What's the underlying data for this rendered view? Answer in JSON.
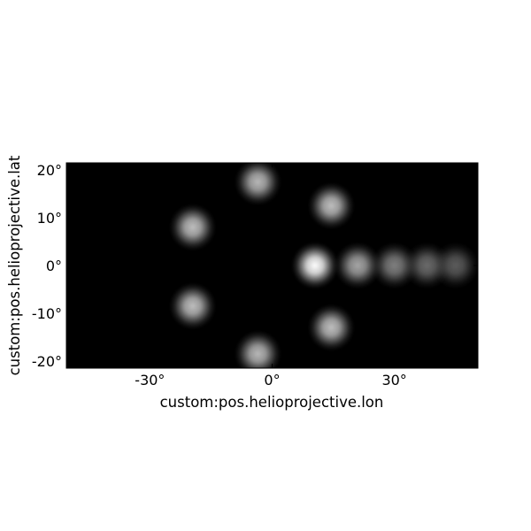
{
  "chart_data": {
    "type": "heatmap",
    "title": "",
    "xlabel": "custom:pos.helioprojective.lon",
    "ylabel": "custom:pos.helioprojective.lat",
    "xlim": [
      -50.5,
      50.5
    ],
    "ylim": [
      -21.5,
      21.5
    ],
    "xticks": [
      {
        "value": -30,
        "label": "-30°"
      },
      {
        "value": 0,
        "label": "0°"
      },
      {
        "value": 30,
        "label": "30°"
      }
    ],
    "yticks": [
      {
        "value": 20,
        "label": "20°"
      },
      {
        "value": 10,
        "label": "10°"
      },
      {
        "value": 0,
        "label": "0°"
      },
      {
        "value": -10,
        "label": "-10°"
      },
      {
        "value": -20,
        "label": "-20°"
      }
    ],
    "colormap": "gray",
    "background_color": "#000000",
    "grid": false,
    "sources": [
      {
        "lon": -3.5,
        "lat": 17.5,
        "intensity": 0.72
      },
      {
        "lon": -3.5,
        "lat": -18.5,
        "intensity": 0.72
      },
      {
        "lon": -19.5,
        "lat": 8,
        "intensity": 0.75
      },
      {
        "lon": -19.5,
        "lat": -8.5,
        "intensity": 0.75
      },
      {
        "lon": 14.5,
        "lat": 12.5,
        "intensity": 0.75
      },
      {
        "lon": 14.5,
        "lat": -13,
        "intensity": 0.75
      },
      {
        "lon": 10.5,
        "lat": 0,
        "intensity": 1.0
      },
      {
        "lon": 21,
        "lat": 0,
        "intensity": 0.65
      },
      {
        "lon": 30,
        "lat": 0,
        "intensity": 0.5
      },
      {
        "lon": 38,
        "lat": 0,
        "intensity": 0.42
      },
      {
        "lon": 45,
        "lat": 0,
        "intensity": 0.36
      }
    ]
  }
}
